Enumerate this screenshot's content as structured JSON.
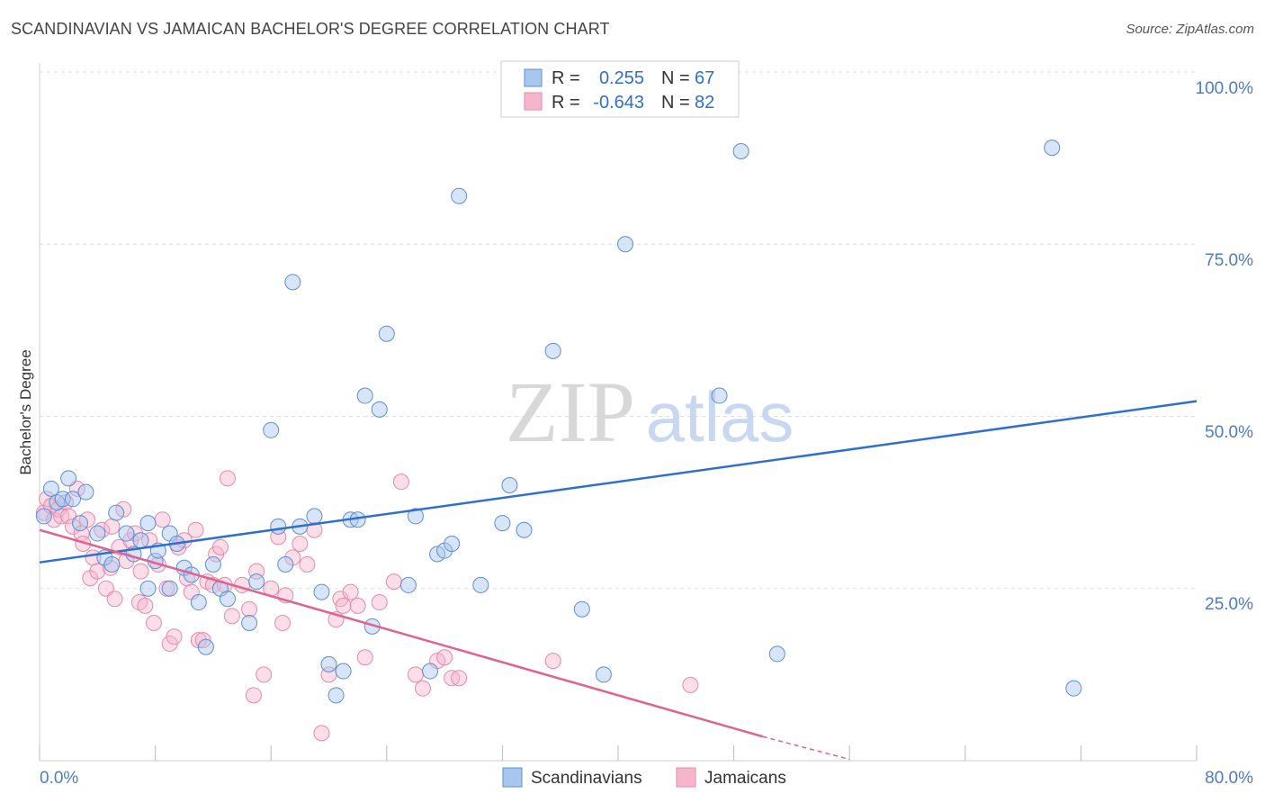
{
  "title": "SCANDINAVIAN VS JAMAICAN BACHELOR'S DEGREE CORRELATION CHART",
  "source": "Source: ZipAtlas.com",
  "watermark": {
    "zip": "ZIP",
    "atlas": "atlas"
  },
  "legend": {
    "r_label": "R =",
    "n_label": "N =",
    "rows": [
      {
        "r": "0.255",
        "n": "67"
      },
      {
        "r": "-0.643",
        "n": "82"
      }
    ]
  },
  "colors": {
    "scandinavian_fill": "#a9c6f0",
    "scandinavian_stroke": "#5b8fd6",
    "scandinavian_line": "#2f6fcf",
    "jamaican_fill": "#f7b5cb",
    "jamaican_stroke": "#e889aa",
    "jamaican_line": "#e0628e",
    "axis_text": "#4a7cc9"
  },
  "chart_data": {
    "type": "scatter",
    "title": "SCANDINAVIAN VS JAMAICAN BACHELOR'S DEGREE CORRELATION CHART",
    "xlabel": "",
    "ylabel": "Bachelor's Degree",
    "xlim": [
      0,
      80
    ],
    "ylim": [
      0,
      100
    ],
    "x_tick_labels": [
      "0.0%",
      "80.0%"
    ],
    "y_tick_labels": [
      "100.0%",
      "75.0%",
      "50.0%",
      "25.0%"
    ],
    "y_ticks": [
      100,
      75,
      50,
      25
    ],
    "grid": true,
    "legend_position": "top-center",
    "series": [
      {
        "name": "Scandinavians",
        "r": 0.255,
        "n": 67,
        "trend": [
          [
            0,
            28.8
          ],
          [
            80,
            52.2
          ]
        ],
        "points": [
          [
            0.3,
            35.5
          ],
          [
            0.8,
            39.5
          ],
          [
            1.2,
            37.5
          ],
          [
            1.6,
            38.0
          ],
          [
            2.0,
            41.0
          ],
          [
            2.3,
            38.0
          ],
          [
            2.8,
            34.5
          ],
          [
            3.2,
            39.0
          ],
          [
            4.0,
            33.0
          ],
          [
            4.5,
            29.5
          ],
          [
            5.3,
            36.0
          ],
          [
            6.0,
            33.0
          ],
          [
            6.5,
            30.0
          ],
          [
            7.0,
            32.0
          ],
          [
            7.5,
            34.5
          ],
          [
            8.0,
            29.0
          ],
          [
            7.5,
            25.0
          ],
          [
            8.2,
            30.5
          ],
          [
            9.0,
            33.0
          ],
          [
            9.5,
            31.5
          ],
          [
            10.0,
            28.0
          ],
          [
            10.5,
            27.0
          ],
          [
            11.0,
            23.0
          ],
          [
            12.0,
            28.5
          ],
          [
            12.5,
            25.0
          ],
          [
            13.0,
            23.5
          ],
          [
            14.5,
            20.0
          ],
          [
            15.0,
            26.0
          ],
          [
            16.0,
            48.0
          ],
          [
            16.5,
            34.0
          ],
          [
            17.0,
            28.5
          ],
          [
            17.5,
            69.5
          ],
          [
            18.0,
            34.0
          ],
          [
            19.0,
            35.5
          ],
          [
            19.5,
            24.5
          ],
          [
            20.0,
            14.0
          ],
          [
            20.5,
            9.5
          ],
          [
            21.0,
            13.0
          ],
          [
            21.5,
            35.0
          ],
          [
            22.0,
            35.0
          ],
          [
            22.5,
            53.0
          ],
          [
            23.0,
            19.5
          ],
          [
            23.5,
            51.0
          ],
          [
            24.0,
            62.0
          ],
          [
            25.5,
            25.5
          ],
          [
            26.0,
            35.5
          ],
          [
            27.0,
            13.0
          ],
          [
            27.5,
            30.0
          ],
          [
            28.0,
            30.5
          ],
          [
            28.5,
            31.5
          ],
          [
            29.0,
            82.0
          ],
          [
            30.5,
            25.5
          ],
          [
            32.0,
            34.5
          ],
          [
            32.5,
            40.0
          ],
          [
            33.5,
            33.5
          ],
          [
            35.5,
            59.5
          ],
          [
            37.5,
            22.0
          ],
          [
            39.0,
            12.5
          ],
          [
            40.5,
            75.0
          ],
          [
            47.0,
            53.0
          ],
          [
            48.5,
            88.5
          ],
          [
            51.0,
            15.5
          ],
          [
            70.0,
            89.0
          ],
          [
            71.5,
            10.5
          ],
          [
            5.0,
            28.5
          ],
          [
            9.0,
            25.0
          ],
          [
            11.5,
            16.5
          ]
        ]
      },
      {
        "name": "Jamaicans",
        "r": -0.643,
        "n": 82,
        "trend": [
          [
            0,
            33.5
          ],
          [
            50,
            3.5
          ]
        ],
        "trend_dashed": [
          [
            50,
            3.5
          ],
          [
            56,
            0.2
          ]
        ],
        "points": [
          [
            0.3,
            36.0
          ],
          [
            0.5,
            38.0
          ],
          [
            0.8,
            37.0
          ],
          [
            1.0,
            35.0
          ],
          [
            1.3,
            36.5
          ],
          [
            1.5,
            35.5
          ],
          [
            1.8,
            37.5
          ],
          [
            2.0,
            35.5
          ],
          [
            2.3,
            34.0
          ],
          [
            2.6,
            39.5
          ],
          [
            2.9,
            33.0
          ],
          [
            3.0,
            31.5
          ],
          [
            3.3,
            35.0
          ],
          [
            3.5,
            26.5
          ],
          [
            3.7,
            29.5
          ],
          [
            4.0,
            27.5
          ],
          [
            4.3,
            33.5
          ],
          [
            4.6,
            25.0
          ],
          [
            4.9,
            28.0
          ],
          [
            5.2,
            23.5
          ],
          [
            5.5,
            31.0
          ],
          [
            5.8,
            36.5
          ],
          [
            6.0,
            29.0
          ],
          [
            6.3,
            32.0
          ],
          [
            6.6,
            33.0
          ],
          [
            6.9,
            23.0
          ],
          [
            7.0,
            27.5
          ],
          [
            7.3,
            22.5
          ],
          [
            7.6,
            32.0
          ],
          [
            7.9,
            20.0
          ],
          [
            8.2,
            28.5
          ],
          [
            8.5,
            35.0
          ],
          [
            8.8,
            25.0
          ],
          [
            9.0,
            17.0
          ],
          [
            9.3,
            18.0
          ],
          [
            9.6,
            31.0
          ],
          [
            10.0,
            32.0
          ],
          [
            10.2,
            26.5
          ],
          [
            10.5,
            24.5
          ],
          [
            10.8,
            33.5
          ],
          [
            11.0,
            17.5
          ],
          [
            11.3,
            17.5
          ],
          [
            11.6,
            26.0
          ],
          [
            12.0,
            25.5
          ],
          [
            12.2,
            30.0
          ],
          [
            12.5,
            31.0
          ],
          [
            12.8,
            25.5
          ],
          [
            13.0,
            41.0
          ],
          [
            13.3,
            21.0
          ],
          [
            14.0,
            25.5
          ],
          [
            14.5,
            22.0
          ],
          [
            14.8,
            9.5
          ],
          [
            15.0,
            27.5
          ],
          [
            15.5,
            12.5
          ],
          [
            16.0,
            25.0
          ],
          [
            16.5,
            32.5
          ],
          [
            17.0,
            24.0
          ],
          [
            17.5,
            29.5
          ],
          [
            18.0,
            31.5
          ],
          [
            18.5,
            28.5
          ],
          [
            19.0,
            33.5
          ],
          [
            19.5,
            4.0
          ],
          [
            20.0,
            12.5
          ],
          [
            20.5,
            20.5
          ],
          [
            20.8,
            23.5
          ],
          [
            21.0,
            22.5
          ],
          [
            21.5,
            24.5
          ],
          [
            22.0,
            22.5
          ],
          [
            22.5,
            15.0
          ],
          [
            23.5,
            23.0
          ],
          [
            24.5,
            26.0
          ],
          [
            25.0,
            40.5
          ],
          [
            26.0,
            12.5
          ],
          [
            26.5,
            10.5
          ],
          [
            27.5,
            14.5
          ],
          [
            28.0,
            15.0
          ],
          [
            28.5,
            12.0
          ],
          [
            29.0,
            12.0
          ],
          [
            35.5,
            14.5
          ],
          [
            45.0,
            11.0
          ],
          [
            16.8,
            20.0
          ],
          [
            5.0,
            34.0
          ]
        ]
      }
    ]
  }
}
